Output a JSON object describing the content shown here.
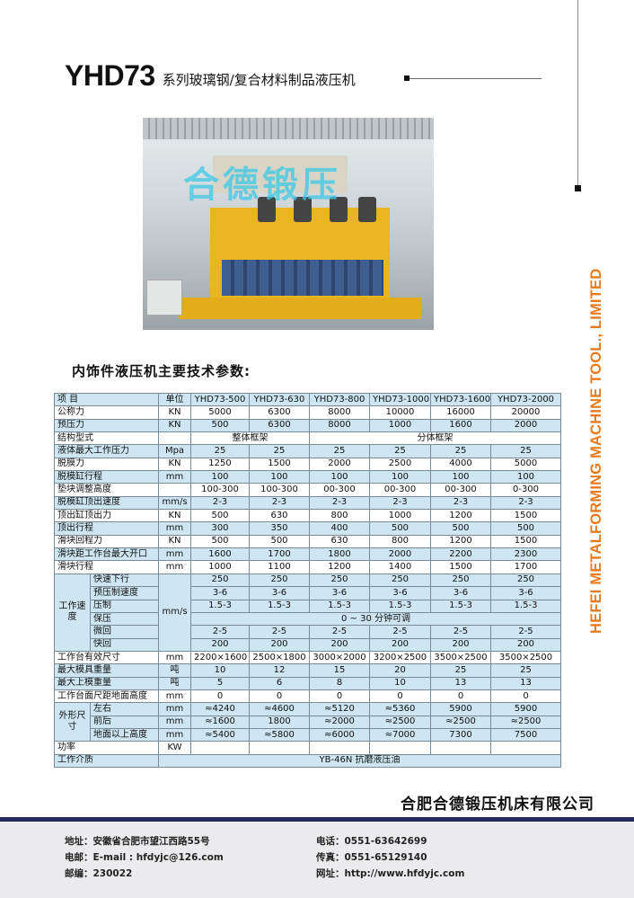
{
  "side_text": "HEFEI METALFORMING MACHINE TOOL., LIMITED",
  "title": {
    "model": "YHD73",
    "subtitle": "系列玻璃钢/复合材料制品液压机"
  },
  "photo": {
    "watermark": "合德锻压"
  },
  "section_heading": "内饰件液压机主要技术参数:",
  "table": {
    "header": [
      "项 目",
      "单位",
      "YHD73-500",
      "YHD73-630",
      "YHD73-800",
      "YHD73-1000",
      "YHD73-1600",
      "YHD73-2000"
    ],
    "rows": [
      {
        "item": "公称力",
        "unit": "KN",
        "values": [
          "5000",
          "6300",
          "8000",
          "10000",
          "16000",
          "20000"
        ]
      },
      {
        "item": "预压力",
        "unit": "KN",
        "values": [
          "500",
          "6300",
          "8000",
          "1000",
          "1600",
          "2000"
        ]
      },
      {
        "item": "结构型式",
        "unit": "",
        "span_a": "整体框架",
        "span_b": "分体框架"
      },
      {
        "item": "液体最大工作压力",
        "unit": "Mpa",
        "values": [
          "25",
          "25",
          "25",
          "25",
          "25",
          "25"
        ]
      },
      {
        "item": "脱膜力",
        "unit": "KN",
        "values": [
          "1250",
          "1500",
          "2000",
          "2500",
          "4000",
          "5000"
        ]
      },
      {
        "item": "脱模缸行程",
        "unit": "mm",
        "values": [
          "100",
          "100",
          "100",
          "100",
          "100",
          "100"
        ]
      },
      {
        "item": "垫块调整高度",
        "unit": "",
        "values": [
          "100-300",
          "100-300",
          "00-300",
          "00-300",
          "00-300",
          "0-300"
        ]
      },
      {
        "item": "脱模缸顶出速度",
        "unit": "mm/s",
        "values": [
          "2-3",
          "2-3",
          "2-3",
          "2-3",
          "2-3",
          "2-3"
        ]
      },
      {
        "item": "顶出缸顶出力",
        "unit": "KN",
        "values": [
          "500",
          "630",
          "800",
          "1000",
          "1200",
          "1500"
        ]
      },
      {
        "item": "顶出行程",
        "unit": "mm",
        "values": [
          "300",
          "350",
          "400",
          "500",
          "500",
          "500"
        ]
      },
      {
        "item": "滑块回程力",
        "unit": "KN",
        "values": [
          "500",
          "500",
          "630",
          "800",
          "1200",
          "1500"
        ]
      },
      {
        "item": "滑块距工作台最大开口",
        "unit": "mm",
        "values": [
          "1600",
          "1700",
          "1800",
          "2000",
          "2200",
          "2300"
        ]
      },
      {
        "item": "滑块行程",
        "unit": "mm",
        "values": [
          "1000",
          "1100",
          "1200",
          "1400",
          "1500",
          "1700"
        ]
      }
    ],
    "speed": {
      "group": "工作速度",
      "unit": "mm/s",
      "rows": [
        {
          "item": "快速下行",
          "values": [
            "250",
            "250",
            "250",
            "250",
            "250",
            "250"
          ]
        },
        {
          "item": "预压制速度",
          "values": [
            "3-6",
            "3-6",
            "3-6",
            "3-6",
            "3-6",
            "3-6"
          ]
        },
        {
          "item": "压制",
          "values": [
            "1.5-3",
            "1.5-3",
            "1.5-3",
            "1.5-3",
            "1.5-3",
            "1.5-3"
          ]
        },
        {
          "item": "保压",
          "span": "0 ~ 30 分钟可调"
        },
        {
          "item": "微回",
          "values": [
            "2-5",
            "2-5",
            "2-5",
            "2-5",
            "2-5",
            "2-5"
          ]
        },
        {
          "item": "快回",
          "values": [
            "200",
            "200",
            "200",
            "200",
            "200",
            "200"
          ]
        }
      ]
    },
    "rows2": [
      {
        "item": "工作台有效尺寸",
        "unit": "mm",
        "values": [
          "2200×1600",
          "2500×1800",
          "3000×2000",
          "3200×2500",
          "3500×2500",
          "3500×2500"
        ]
      },
      {
        "item": "最大模具重量",
        "unit": "吨",
        "values": [
          "10",
          "12",
          "15",
          "20",
          "25",
          "25"
        ]
      },
      {
        "item": "最大上模重量",
        "unit": "吨",
        "values": [
          "5",
          "6",
          "8",
          "10",
          "13",
          "13"
        ]
      },
      {
        "item": "工作台面尺距地面高度",
        "unit": "mm",
        "values": [
          "0",
          "0",
          "0",
          "0",
          "0",
          "0"
        ]
      }
    ],
    "dims": {
      "group": "外形尺寸",
      "rows": [
        {
          "item": "左右",
          "unit": "mm",
          "values": [
            "≈4240",
            "≈4600",
            "≈5120",
            "≈5360",
            "5900",
            "5900"
          ]
        },
        {
          "item": "前后",
          "unit": "mm",
          "values": [
            "≈1600",
            "1800",
            "≈2000",
            "≈2500",
            "≈2500",
            "≈2500"
          ]
        },
        {
          "item": "地面以上高度",
          "unit": "mm",
          "values": [
            "≈5400",
            "≈5800",
            "≈6000",
            "≈7000",
            "7300",
            "7500"
          ]
        }
      ]
    },
    "power": {
      "item": "功率",
      "unit": "KW"
    },
    "medium": {
      "item": "工作介质",
      "value": "YB-46N 抗磨液压油"
    }
  },
  "company": "合肥合德锻压机床有限公司",
  "footer": {
    "address": "地址：安徽省合肥市望江西路55号",
    "email": "电邮：E-mail : hfdyjc@126.com",
    "postcode": "邮编：230022",
    "phone": "电话：0551-63642699",
    "fax": "传真：0551-65129140",
    "website": "网址：http://www.hfdyjc.com"
  },
  "colors": {
    "accent": "#e87a1c",
    "row_blue": "#cde6f2",
    "footer_bar": "#24295a"
  }
}
